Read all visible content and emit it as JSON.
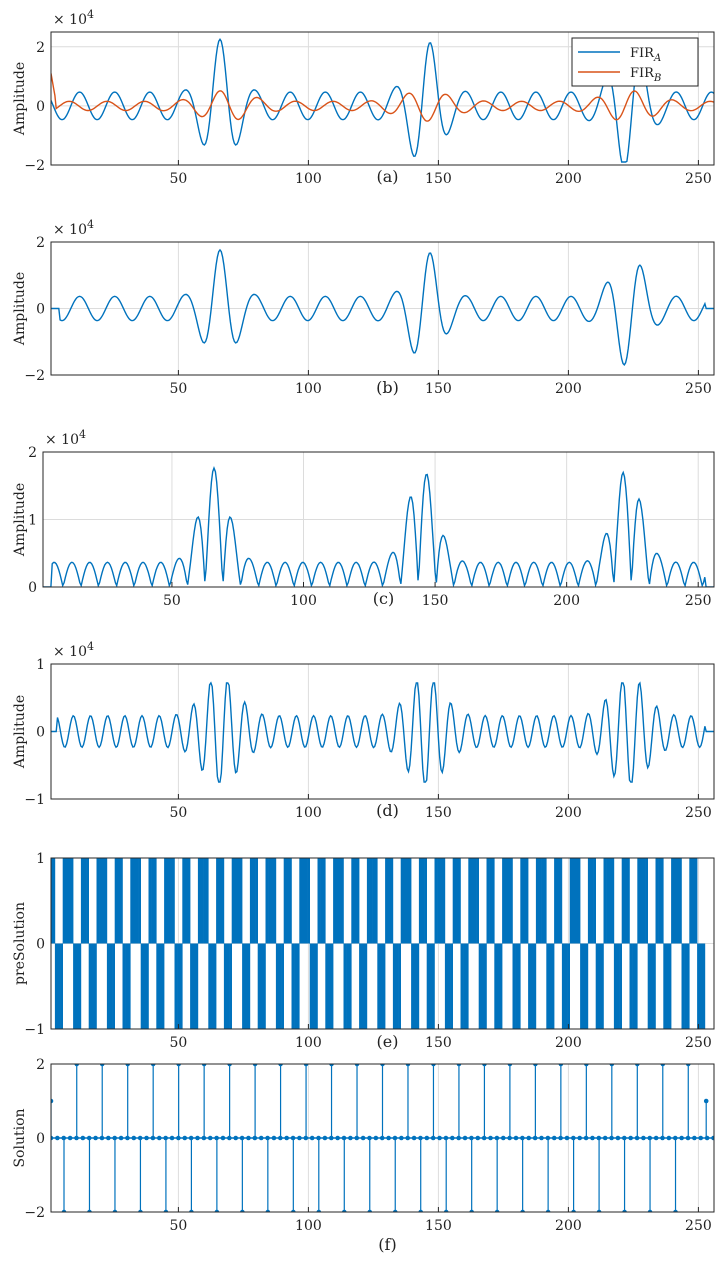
{
  "colors": {
    "blue": "#0072BD",
    "orange": "#D95319",
    "grid": "#dcdcdc",
    "axes": "#262626"
  },
  "chart_data": [
    {
      "type": "line",
      "caption": "(a)",
      "ylabel": "Amplitude",
      "exponent_label": "× 10",
      "exponent_power": "4",
      "xlim": [
        1,
        256
      ],
      "ylim": [
        -20000,
        25000
      ],
      "xticks": [
        50,
        100,
        150,
        200,
        250
      ],
      "yticks": [
        -2,
        0,
        2
      ],
      "ytick_labels": [
        "−2",
        "0",
        "2"
      ],
      "grid": true,
      "legend_position": "top-right",
      "legend": [
        {
          "label": "FIR",
          "sub": "A",
          "color": "#0072BD"
        },
        {
          "label": "FIR",
          "sub": "B",
          "color": "#D95319"
        }
      ],
      "series": [
        {
          "name": "FIR_A",
          "color": "#0072BD",
          "gen": "sigA"
        },
        {
          "name": "FIR_B",
          "color": "#D95319",
          "gen": "sigB"
        }
      ]
    },
    {
      "type": "line",
      "caption": "(b)",
      "ylabel": "Amplitude",
      "exponent_label": "× 10",
      "exponent_power": "4",
      "xlim": [
        1,
        256
      ],
      "ylim": [
        -20000,
        20000
      ],
      "xticks": [
        50,
        100,
        150,
        200,
        250
      ],
      "yticks": [
        -2,
        0,
        2
      ],
      "ytick_labels": [
        "−2",
        "0",
        "2"
      ],
      "grid": true,
      "series": [
        {
          "color": "#0072BD",
          "gen": "sigBfilt"
        }
      ]
    },
    {
      "type": "line",
      "caption": "(c)",
      "ylabel": "Amplitude",
      "exponent_label": "× 10",
      "exponent_power": "4",
      "xlim": [
        1,
        256
      ],
      "ylim": [
        0,
        20000
      ],
      "xticks": [
        50,
        100,
        150,
        200,
        250
      ],
      "yticks": [
        0,
        1,
        2
      ],
      "ytick_labels": [
        "0",
        "1",
        "2"
      ],
      "grid": true,
      "series": [
        {
          "color": "#0072BD",
          "gen": "sigAbs"
        }
      ]
    },
    {
      "type": "line",
      "caption": "(d)",
      "ylabel": "Amplitude",
      "exponent_label": "× 10",
      "exponent_power": "4",
      "xlim": [
        1,
        256
      ],
      "ylim": [
        -10000,
        10000
      ],
      "xticks": [
        50,
        100,
        150,
        200,
        250
      ],
      "yticks": [
        -1,
        0,
        1
      ],
      "ytick_labels": [
        "−1",
        "0",
        "1"
      ],
      "grid": true,
      "series": [
        {
          "color": "#0072BD",
          "gen": "sigD"
        }
      ]
    },
    {
      "type": "bar",
      "caption": "(e)",
      "ylabel": "preSolution",
      "xlim": [
        1,
        256
      ],
      "ylim": [
        -1,
        1
      ],
      "xticks": [
        50,
        100,
        150,
        200,
        250
      ],
      "yticks": [
        -1,
        0,
        1
      ],
      "ytick_labels": [
        "−1",
        "0",
        "1"
      ],
      "grid": true,
      "series": [
        {
          "color": "#0072BD",
          "gen": "sign"
        }
      ]
    },
    {
      "type": "stem",
      "caption": "(f)",
      "ylabel": "Solution",
      "xlim": [
        1,
        256
      ],
      "ylim": [
        -2,
        2
      ],
      "xticks": [
        50,
        100,
        150,
        200,
        250
      ],
      "yticks": [
        -2,
        0,
        2
      ],
      "ytick_labels": [
        "−2",
        "0",
        "2"
      ],
      "grid": true,
      "series": [
        {
          "color": "#0072BD",
          "gen": "stem"
        }
      ]
    }
  ]
}
